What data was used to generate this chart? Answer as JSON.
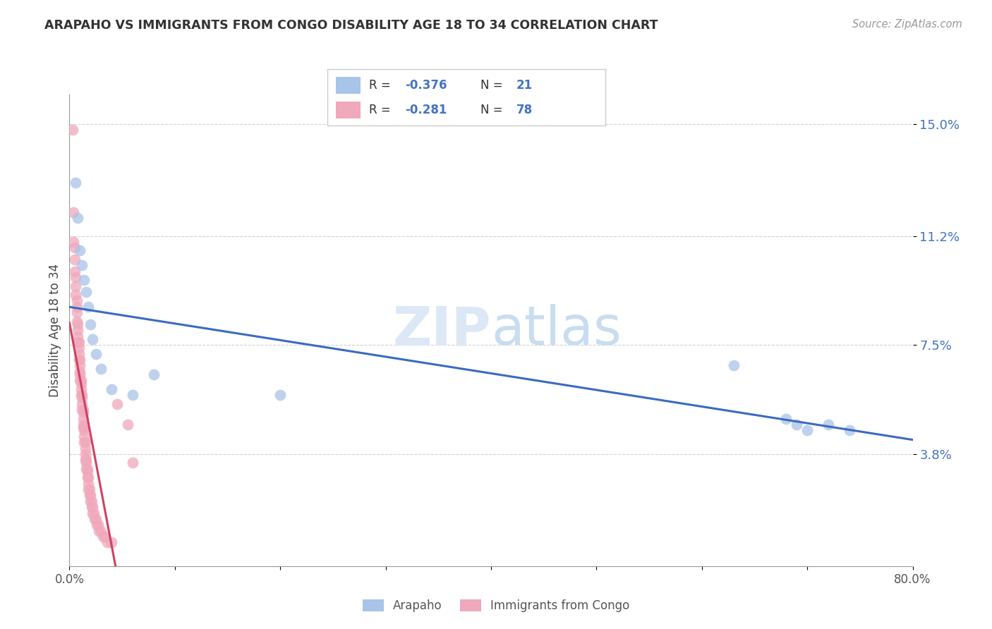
{
  "title": "ARAPAHO VS IMMIGRANTS FROM CONGO DISABILITY AGE 18 TO 34 CORRELATION CHART",
  "source": "Source: ZipAtlas.com",
  "ylabel": "Disability Age 18 to 34",
  "xlim": [
    0.0,
    0.8
  ],
  "ylim": [
    0.0,
    0.16
  ],
  "yticks": [
    0.038,
    0.075,
    0.112,
    0.15
  ],
  "ytick_labels": [
    "3.8%",
    "7.5%",
    "11.2%",
    "15.0%"
  ],
  "xticks": [
    0.0,
    0.1,
    0.2,
    0.3,
    0.4,
    0.5,
    0.6,
    0.7,
    0.8
  ],
  "xtick_labels": [
    "0.0%",
    "",
    "",
    "",
    "",
    "",
    "",
    "",
    "80.0%"
  ],
  "arapaho_R": -0.376,
  "arapaho_N": 21,
  "congo_R": -0.281,
  "congo_N": 78,
  "arapaho_color": "#a8c4e8",
  "congo_color": "#f0a8bc",
  "arapaho_line_color": "#3a6bbf",
  "congo_line_color": "#d04060",
  "watermark_color": "#d8e8f4",
  "arapaho_x": [
    0.006,
    0.008,
    0.01,
    0.012,
    0.014,
    0.016,
    0.018,
    0.02,
    0.022,
    0.025,
    0.03,
    0.04,
    0.06,
    0.08,
    0.2,
    0.63,
    0.68,
    0.69,
    0.7,
    0.72,
    0.74
  ],
  "arapaho_y": [
    0.13,
    0.118,
    0.107,
    0.102,
    0.097,
    0.093,
    0.088,
    0.082,
    0.077,
    0.072,
    0.067,
    0.06,
    0.058,
    0.065,
    0.058,
    0.068,
    0.05,
    0.048,
    0.046,
    0.048,
    0.046
  ],
  "congo_x": [
    0.003,
    0.004,
    0.004,
    0.005,
    0.005,
    0.005,
    0.006,
    0.006,
    0.006,
    0.007,
    0.007,
    0.007,
    0.007,
    0.008,
    0.008,
    0.008,
    0.008,
    0.009,
    0.009,
    0.009,
    0.009,
    0.01,
    0.01,
    0.01,
    0.01,
    0.01,
    0.011,
    0.011,
    0.011,
    0.011,
    0.012,
    0.012,
    0.012,
    0.012,
    0.013,
    0.013,
    0.013,
    0.013,
    0.013,
    0.014,
    0.014,
    0.014,
    0.014,
    0.015,
    0.015,
    0.015,
    0.015,
    0.016,
    0.016,
    0.016,
    0.017,
    0.017,
    0.017,
    0.018,
    0.018,
    0.018,
    0.019,
    0.019,
    0.02,
    0.02,
    0.021,
    0.021,
    0.022,
    0.022,
    0.023,
    0.024,
    0.025,
    0.026,
    0.027,
    0.028,
    0.03,
    0.032,
    0.034,
    0.036,
    0.04,
    0.045,
    0.055,
    0.06
  ],
  "congo_y": [
    0.148,
    0.12,
    0.11,
    0.108,
    0.104,
    0.1,
    0.098,
    0.095,
    0.092,
    0.09,
    0.088,
    0.086,
    0.083,
    0.082,
    0.08,
    0.078,
    0.076,
    0.076,
    0.074,
    0.072,
    0.07,
    0.07,
    0.068,
    0.066,
    0.065,
    0.063,
    0.063,
    0.062,
    0.06,
    0.058,
    0.058,
    0.057,
    0.055,
    0.053,
    0.053,
    0.052,
    0.05,
    0.048,
    0.047,
    0.047,
    0.046,
    0.044,
    0.042,
    0.042,
    0.04,
    0.038,
    0.036,
    0.036,
    0.035,
    0.033,
    0.033,
    0.032,
    0.03,
    0.03,
    0.028,
    0.026,
    0.026,
    0.024,
    0.024,
    0.022,
    0.022,
    0.02,
    0.02,
    0.018,
    0.018,
    0.016,
    0.016,
    0.014,
    0.014,
    0.012,
    0.012,
    0.01,
    0.01,
    0.008,
    0.008,
    0.055,
    0.048,
    0.035
  ]
}
